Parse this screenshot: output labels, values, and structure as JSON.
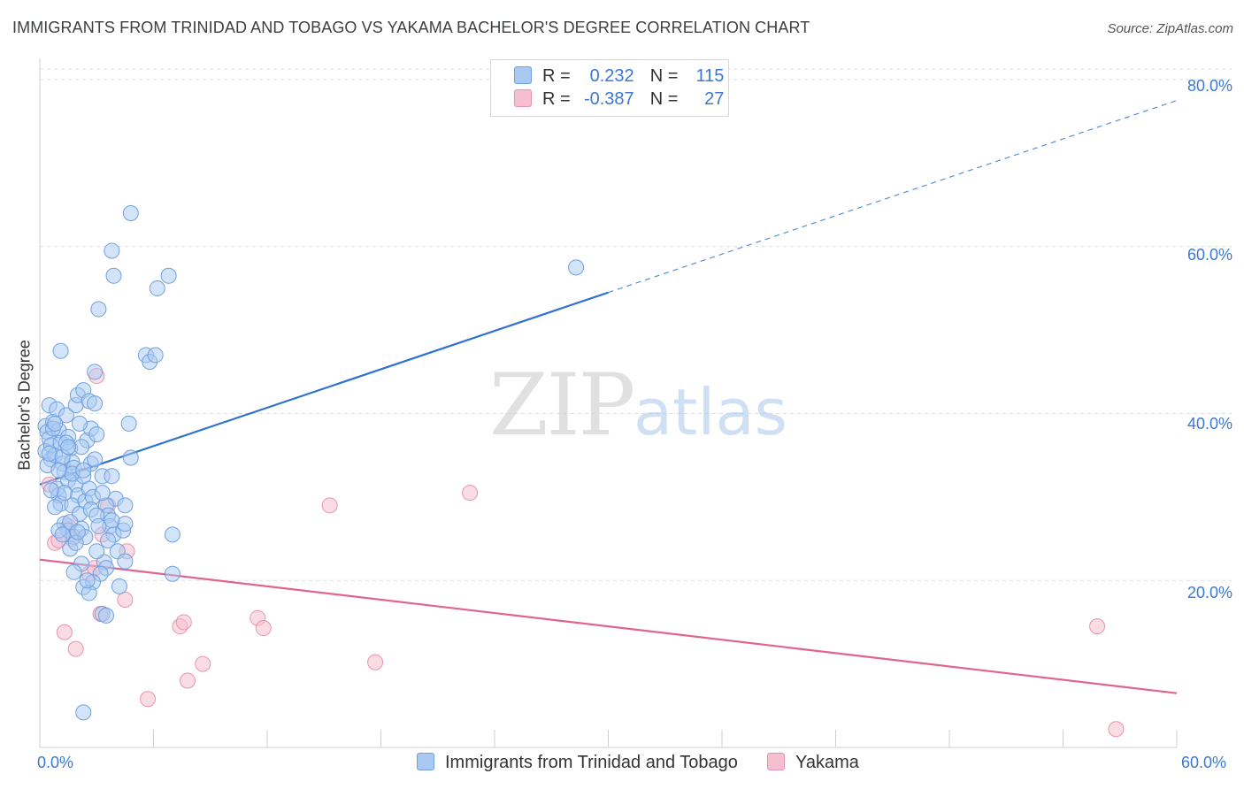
{
  "title": "IMMIGRANTS FROM TRINIDAD AND TOBAGO VS YAKAMA BACHELOR'S DEGREE CORRELATION CHART",
  "source": "Source: ZipAtlas.com",
  "watermark": {
    "zip": "ZIP",
    "atlas": "atlas"
  },
  "legend": {
    "rows": [
      {
        "r_label": "R =",
        "r_value": "0.232",
        "n_label": "N =",
        "n_value": "115"
      },
      {
        "r_label": "R =",
        "r_value": "-0.387",
        "n_label": "N =",
        "n_value": "27"
      }
    ]
  },
  "bottom_legend": [
    "Immigrants from Trinidad and Tobago",
    "Yakama"
  ],
  "colors": {
    "blue_fill": "#aac9f2",
    "blue_stroke": "#6fa0e0",
    "blue_line": "#2f72d0",
    "pink_fill": "#f6bfd0",
    "pink_stroke": "#ea93af",
    "pink_line": "#e0648f",
    "grid": "#dedede",
    "axis_text": "#3a78d4"
  },
  "chart_data": {
    "type": "scatter",
    "title": "IMMIGRANTS FROM TRINIDAD AND TOBAGO VS YAKAMA BACHELOR'S DEGREE CORRELATION CHART",
    "xlabel": "",
    "ylabel": "Bachelor's Degree",
    "xlim": [
      0,
      60
    ],
    "ylim": [
      0,
      80
    ],
    "x_tick_labels": [
      "0.0%",
      "60.0%"
    ],
    "y_ticks": [
      20,
      40,
      60,
      80
    ],
    "y_tick_labels": [
      "20.0%",
      "40.0%",
      "60.0%",
      "80.0%"
    ],
    "grid": true,
    "series": [
      {
        "name": "Immigrants from Trinidad and Tobago",
        "R": 0.232,
        "N": 115,
        "trend": {
          "x0": 0,
          "y0": 31.5,
          "x1": 30,
          "y1": 54.5,
          "dashed_to_x": 60,
          "dashed_to_y": 77.5
        },
        "points": [
          [
            0.3,
            38.5
          ],
          [
            0.4,
            37.8
          ],
          [
            0.5,
            37.0
          ],
          [
            0.3,
            35.5
          ],
          [
            0.6,
            34.5
          ],
          [
            0.4,
            33.8
          ],
          [
            0.5,
            41.0
          ],
          [
            0.7,
            39.0
          ],
          [
            0.6,
            36.2
          ],
          [
            0.8,
            35.0
          ],
          [
            0.9,
            40.5
          ],
          [
            1.0,
            38.0
          ],
          [
            1.1,
            36.5
          ],
          [
            1.2,
            34.0
          ],
          [
            1.3,
            33.0
          ],
          [
            0.9,
            31.0
          ],
          [
            1.0,
            30.2
          ],
          [
            1.1,
            29.2
          ],
          [
            0.8,
            28.8
          ],
          [
            1.4,
            39.8
          ],
          [
            1.5,
            37.2
          ],
          [
            1.6,
            35.8
          ],
          [
            1.7,
            34.2
          ],
          [
            1.8,
            33.5
          ],
          [
            1.5,
            32.0
          ],
          [
            1.9,
            31.5
          ],
          [
            2.0,
            30.2
          ],
          [
            1.7,
            29.0
          ],
          [
            2.1,
            28.0
          ],
          [
            1.3,
            26.8
          ],
          [
            1.5,
            26.0
          ],
          [
            1.8,
            25.2
          ],
          [
            1.6,
            23.8
          ],
          [
            2.2,
            26.2
          ],
          [
            2.4,
            29.5
          ],
          [
            2.6,
            31.0
          ],
          [
            2.3,
            32.5
          ],
          [
            2.7,
            34.0
          ],
          [
            2.5,
            36.8
          ],
          [
            2.7,
            38.2
          ],
          [
            2.1,
            38.8
          ],
          [
            1.9,
            41.0
          ],
          [
            2.0,
            42.2
          ],
          [
            2.3,
            42.8
          ],
          [
            2.6,
            41.5
          ],
          [
            2.9,
            41.2
          ],
          [
            1.1,
            47.5
          ],
          [
            2.9,
            45.0
          ],
          [
            3.1,
            52.5
          ],
          [
            3.8,
            59.5
          ],
          [
            3.9,
            56.5
          ],
          [
            4.8,
            64.0
          ],
          [
            5.6,
            47.0
          ],
          [
            5.8,
            46.2
          ],
          [
            6.1,
            47.0
          ],
          [
            6.2,
            55.0
          ],
          [
            6.8,
            56.5
          ],
          [
            4.7,
            38.8
          ],
          [
            4.8,
            34.7
          ],
          [
            3.3,
            32.5
          ],
          [
            3.8,
            32.5
          ],
          [
            4.0,
            29.8
          ],
          [
            3.5,
            29.0
          ],
          [
            3.6,
            27.8
          ],
          [
            3.7,
            26.5
          ],
          [
            3.9,
            25.5
          ],
          [
            4.4,
            26.0
          ],
          [
            4.5,
            29.0
          ],
          [
            3.6,
            24.8
          ],
          [
            4.1,
            23.5
          ],
          [
            3.4,
            22.2
          ],
          [
            3.5,
            21.5
          ],
          [
            3.2,
            20.8
          ],
          [
            2.8,
            19.8
          ],
          [
            2.3,
            19.2
          ],
          [
            2.6,
            18.5
          ],
          [
            4.2,
            19.3
          ],
          [
            3.3,
            16.0
          ],
          [
            3.5,
            15.8
          ],
          [
            2.3,
            4.2
          ],
          [
            7.0,
            25.5
          ],
          [
            7.0,
            20.8
          ],
          [
            3.0,
            23.5
          ],
          [
            4.5,
            22.3
          ],
          [
            2.4,
            25.2
          ],
          [
            2.8,
            30.0
          ],
          [
            0.5,
            35.2
          ],
          [
            0.7,
            38.2
          ],
          [
            1.4,
            36.5
          ],
          [
            1.2,
            34.8
          ],
          [
            2.2,
            36.0
          ],
          [
            3.0,
            37.5
          ],
          [
            2.9,
            34.5
          ],
          [
            1.7,
            32.8
          ],
          [
            1.3,
            30.5
          ],
          [
            2.7,
            28.5
          ],
          [
            3.0,
            27.8
          ],
          [
            1.6,
            27.0
          ],
          [
            1.0,
            26.0
          ],
          [
            1.2,
            25.5
          ],
          [
            1.9,
            24.5
          ],
          [
            2.2,
            22.0
          ],
          [
            3.1,
            26.5
          ],
          [
            1.8,
            21.0
          ],
          [
            2.5,
            20.0
          ],
          [
            0.6,
            30.8
          ],
          [
            4.5,
            26.8
          ],
          [
            3.8,
            27.2
          ],
          [
            28.3,
            57.5
          ],
          [
            1.5,
            36.0
          ],
          [
            2.3,
            33.2
          ],
          [
            1.0,
            33.2
          ],
          [
            0.8,
            38.8
          ],
          [
            3.3,
            30.5
          ],
          [
            2.0,
            25.8
          ]
        ]
      },
      {
        "name": "Yakama",
        "R": -0.387,
        "N": 27,
        "trend": {
          "x0": 0,
          "y0": 22.5,
          "x1": 60,
          "y1": 6.5
        },
        "points": [
          [
            0.5,
            31.5
          ],
          [
            0.8,
            24.5
          ],
          [
            1.5,
            26.5
          ],
          [
            1.7,
            25.0
          ],
          [
            1.3,
            13.8
          ],
          [
            1.9,
            11.8
          ],
          [
            2.6,
            20.8
          ],
          [
            3.0,
            44.5
          ],
          [
            3.2,
            16.0
          ],
          [
            3.6,
            29.0
          ],
          [
            4.5,
            17.7
          ],
          [
            4.6,
            23.5
          ],
          [
            3.3,
            25.5
          ],
          [
            2.9,
            21.5
          ],
          [
            5.7,
            5.8
          ],
          [
            7.4,
            14.5
          ],
          [
            7.6,
            15.0
          ],
          [
            7.8,
            8.0
          ],
          [
            8.6,
            10.0
          ],
          [
            11.5,
            15.5
          ],
          [
            11.8,
            14.3
          ],
          [
            15.3,
            29.0
          ],
          [
            17.7,
            10.2
          ],
          [
            22.7,
            30.5
          ],
          [
            55.8,
            14.5
          ],
          [
            56.8,
            2.2
          ],
          [
            1.0,
            24.8
          ]
        ]
      }
    ]
  }
}
